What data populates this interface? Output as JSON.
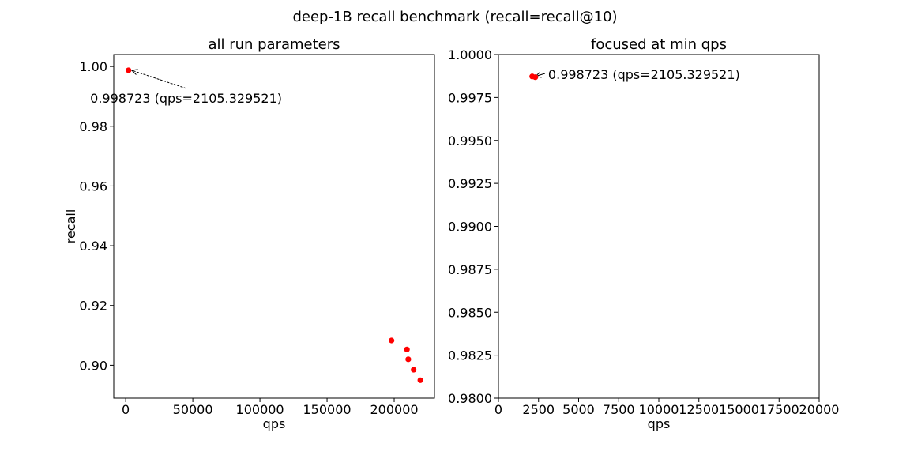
{
  "figure": {
    "suptitle": "deep-1B recall benchmark (recall=recall@10)"
  },
  "chart_data": [
    {
      "type": "scatter",
      "title": "all run parameters",
      "xlabel": "qps",
      "ylabel": "recall",
      "xlim": [
        -8900,
        230000
      ],
      "ylim": [
        0.889,
        1.004
      ],
      "xticks": [
        0,
        50000,
        100000,
        150000,
        200000
      ],
      "xtick_labels": [
        "0",
        "50000",
        "100000",
        "150000",
        "200000"
      ],
      "yticks": [
        0.9,
        0.92,
        0.94,
        0.96,
        0.98,
        1.0
      ],
      "ytick_labels": [
        "0.90",
        "0.92",
        "0.94",
        "0.96",
        "0.98",
        "1.00"
      ],
      "grid": false,
      "marker_color": "#ff0000",
      "points": [
        {
          "x": 2105.329521,
          "y": 0.998723
        },
        {
          "x": 198000,
          "y": 0.9083
        },
        {
          "x": 209500,
          "y": 0.9053
        },
        {
          "x": 210500,
          "y": 0.902
        },
        {
          "x": 214500,
          "y": 0.8985
        },
        {
          "x": 219500,
          "y": 0.895
        }
      ],
      "annotation": {
        "text": "0.998723 (qps=2105.329521)",
        "target": {
          "x": 2105.329521,
          "y": 0.998723
        },
        "text_pos": {
          "x": 45000,
          "y": 0.9895
        }
      }
    },
    {
      "type": "scatter",
      "title": "focused at min qps",
      "xlabel": "qps",
      "ylabel": "",
      "xlim": [
        0,
        20000
      ],
      "ylim": [
        0.98,
        1.0
      ],
      "xticks": [
        0,
        2500,
        5000,
        7500,
        10000,
        12500,
        15000,
        17500,
        20000
      ],
      "xtick_labels": [
        "0",
        "2500",
        "5000",
        "7500",
        "10000",
        "12500",
        "15000",
        "17500",
        "20000"
      ],
      "yticks": [
        0.98,
        0.9825,
        0.985,
        0.9875,
        0.99,
        0.9925,
        0.995,
        0.9975,
        1.0
      ],
      "ytick_labels": [
        "0.9800",
        "0.9825",
        "0.9850",
        "0.9875",
        "0.9900",
        "0.9925",
        "0.9950",
        "0.9975",
        "1.0000"
      ],
      "grid": false,
      "marker_color": "#ff0000",
      "points": [
        {
          "x": 2105.329521,
          "y": 0.998723
        },
        {
          "x": 2300,
          "y": 0.99868
        }
      ],
      "annotation": {
        "text": "0.998723 (qps=2105.329521)",
        "target": {
          "x": 2105.329521,
          "y": 0.998723
        },
        "text_pos": {
          "x": 3100,
          "y": 0.99885
        }
      }
    }
  ]
}
